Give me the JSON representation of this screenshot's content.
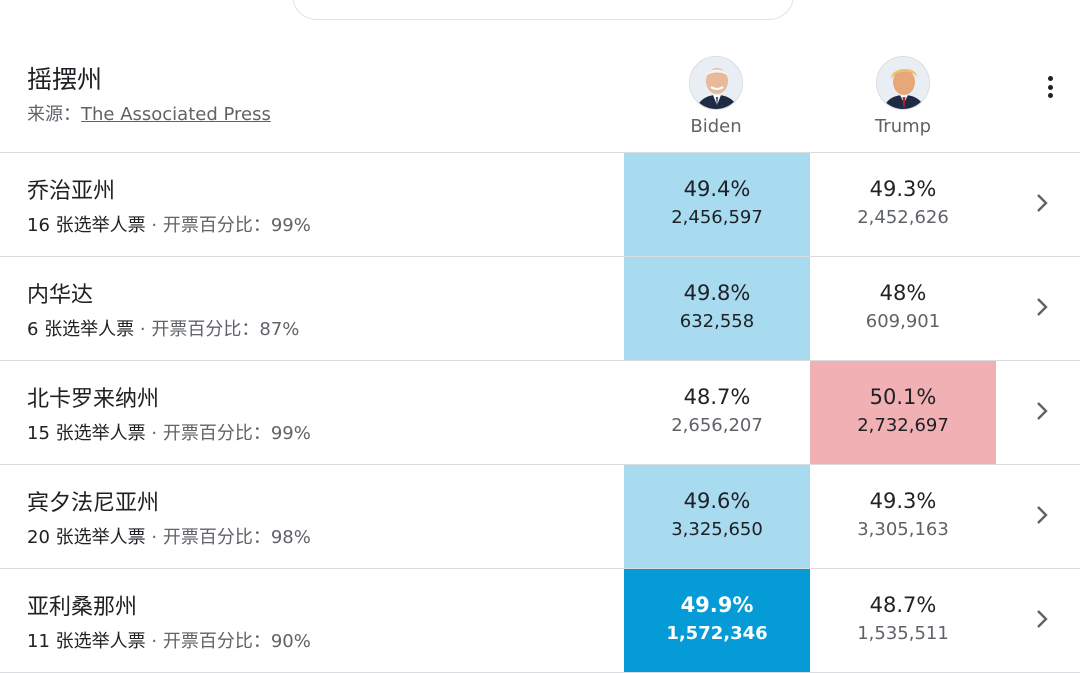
{
  "header": {
    "title": "摇摆州",
    "source_label": "来源：",
    "source_link": "The Associated Press"
  },
  "candidates": [
    {
      "name": "Biden"
    },
    {
      "name": "Trump"
    }
  ],
  "colors": {
    "biden_light": "#a8daf0",
    "biden_dark": "#049bd6",
    "trump_light": "#f0b0b4"
  },
  "rows": [
    {
      "state": "乔治亚州",
      "electoral": "16",
      "electoral_label": "张选举人票",
      "sep": "·",
      "reporting_label": "开票百分比：",
      "reporting": "99%",
      "biden_pct": "49.4%",
      "biden_votes": "2,456,597",
      "trump_pct": "49.3%",
      "trump_votes": "2,452,626"
    },
    {
      "state": "内华达",
      "electoral": "6",
      "electoral_label": "张选举人票",
      "sep": "·",
      "reporting_label": "开票百分比：",
      "reporting": "87%",
      "biden_pct": "49.8%",
      "biden_votes": "632,558",
      "trump_pct": "48%",
      "trump_votes": "609,901"
    },
    {
      "state": "北卡罗来纳州",
      "electoral": "15",
      "electoral_label": "张选举人票",
      "sep": "·",
      "reporting_label": "开票百分比：",
      "reporting": "99%",
      "biden_pct": "48.7%",
      "biden_votes": "2,656,207",
      "trump_pct": "50.1%",
      "trump_votes": "2,732,697"
    },
    {
      "state": "宾夕法尼亚州",
      "electoral": "20",
      "electoral_label": "张选举人票",
      "sep": "·",
      "reporting_label": "开票百分比：",
      "reporting": "98%",
      "biden_pct": "49.6%",
      "biden_votes": "3,325,650",
      "trump_pct": "49.3%",
      "trump_votes": "3,305,163"
    },
    {
      "state": "亚利桑那州",
      "electoral": "11",
      "electoral_label": "张选举人票",
      "sep": "·",
      "reporting_label": "开票百分比：",
      "reporting": "90%",
      "biden_pct": "49.9%",
      "biden_votes": "1,572,346",
      "trump_pct": "48.7%",
      "trump_votes": "1,535,511"
    }
  ]
}
